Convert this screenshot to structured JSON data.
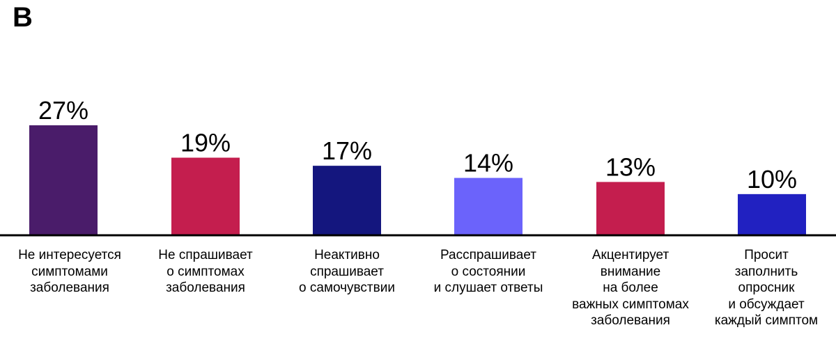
{
  "panel_label": "B",
  "chart_data": {
    "type": "bar",
    "categories": [
      "Не интересуется\nсимптомами\nзаболевания",
      "Не спрашивает\nо симптомах\nзаболевания",
      "Неактивно\nспрашивает\nо самочувствии",
      "Расспрашивает\nо состоянии\nи слушает ответы",
      "Акцентирует\nвнимание\nна более\nважных симптомах\nзаболевания",
      "Просит\nзаполнить\nопросник\nи обсуждает\nкаждый симптом"
    ],
    "values": [
      27,
      19,
      17,
      14,
      13,
      10
    ],
    "value_labels": [
      "27%",
      "19%",
      "17%",
      "14%",
      "13%",
      "10%"
    ],
    "colors": [
      "#4a1c6a",
      "#c41e4e",
      "#14167e",
      "#6b63fb",
      "#c41e4e",
      "#2121c1"
    ],
    "ylim": [
      0,
      27
    ],
    "title": "",
    "xlabel": "",
    "ylabel": ""
  }
}
